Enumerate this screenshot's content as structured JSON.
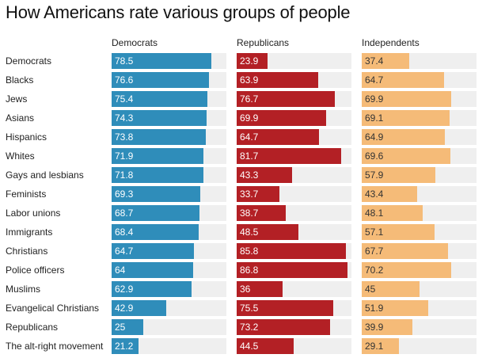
{
  "chart_data": {
    "type": "bar",
    "title": "How Americans rate various groups of people",
    "categories": [
      "Democrats",
      "Blacks",
      "Jews",
      "Asians",
      "Hispanics",
      "Whites",
      "Gays and lesbians",
      "Feminists",
      "Labor unions",
      "Immigrants",
      "Christians",
      "Police officers",
      "Muslims",
      "Evangelical Christians",
      "Republicans",
      "The alt-right movement"
    ],
    "series": [
      {
        "name": "Democrats",
        "values": [
          "78.5",
          "76.6",
          "75.4",
          "74.3",
          "73.8",
          "71.9",
          "71.8",
          "69.3",
          "68.7",
          "68.4",
          "64.7",
          "64",
          "62.9",
          "42.9",
          "25",
          "21.2"
        ]
      },
      {
        "name": "Republicans",
        "values": [
          "23.9",
          "63.9",
          "76.7",
          "69.9",
          "64.7",
          "81.7",
          "43.3",
          "33.7",
          "38.7",
          "48.5",
          "85.8",
          "86.8",
          "36",
          "75.5",
          "73.2",
          "44.5"
        ]
      },
      {
        "name": "Independents",
        "values": [
          "37.4",
          "64.7",
          "69.9",
          "69.1",
          "64.9",
          "69.6",
          "57.9",
          "43.4",
          "48.1",
          "57.1",
          "67.7",
          "70.2",
          "45",
          "51.9",
          "39.9",
          "29.1"
        ]
      }
    ],
    "xlim": [
      0,
      90
    ],
    "colors": {
      "Democrats": "#2f8dba",
      "Republicans": "#b32025",
      "Independents": "#f5bb78"
    }
  }
}
